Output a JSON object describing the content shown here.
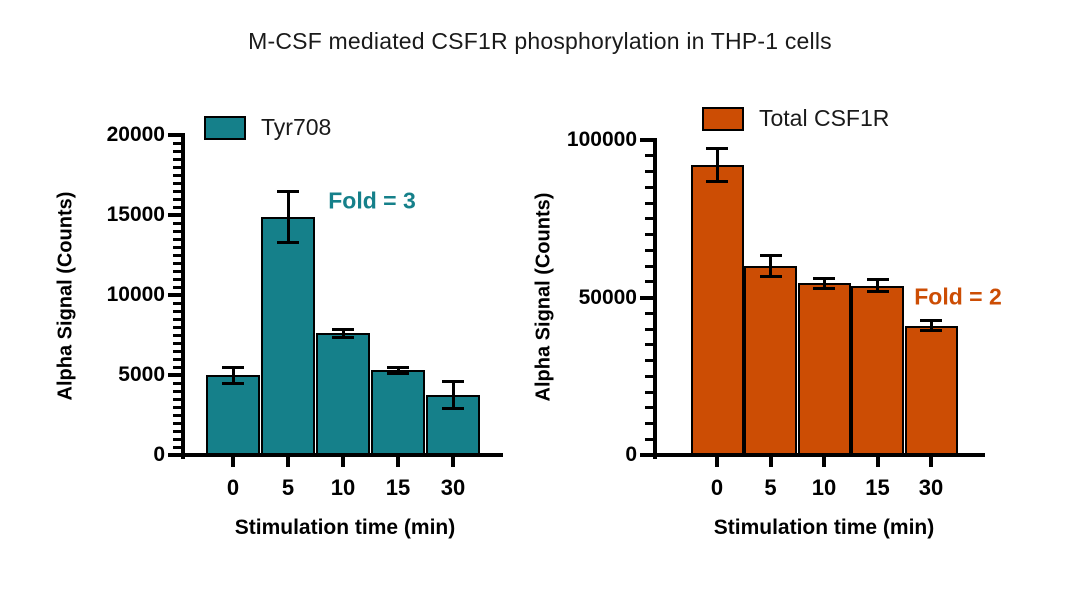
{
  "title": "M-CSF mediated CSF1R phosphorylation in THP-1 cells",
  "chart_data": [
    {
      "type": "bar",
      "legend": "Tyr708",
      "color": "#15808A",
      "annotation": "Fold = 3",
      "categories": [
        "0",
        "5",
        "10",
        "15",
        "30"
      ],
      "values": [
        5000,
        14900,
        7600,
        5300,
        3750
      ],
      "errors": [
        500,
        1600,
        250,
        200,
        850
      ],
      "xlabel": "Stimulation time (min)",
      "ylabel": "Alpha Signal (Counts)",
      "ylim": [
        0,
        20000
      ],
      "yticks": [
        0,
        5000,
        10000,
        15000,
        20000
      ],
      "minor_tick_step": 500,
      "grid": false,
      "legend_position": "top-left"
    },
    {
      "type": "bar",
      "legend": "Total CSF1R",
      "color": "#CC4D04",
      "annotation": "Fold = 2",
      "categories": [
        "0",
        "5",
        "10",
        "15",
        "30"
      ],
      "values": [
        92000,
        60000,
        54500,
        53800,
        41000
      ],
      "errors": [
        5300,
        3300,
        1500,
        2000,
        1600
      ],
      "xlabel": "Stimulation time (min)",
      "ylabel": "Alpha Signal (Counts)",
      "ylim": [
        0,
        100000
      ],
      "yticks": [
        0,
        50000,
        100000
      ],
      "minor_tick_step": 5000,
      "grid": false,
      "legend_position": "top-left"
    }
  ]
}
